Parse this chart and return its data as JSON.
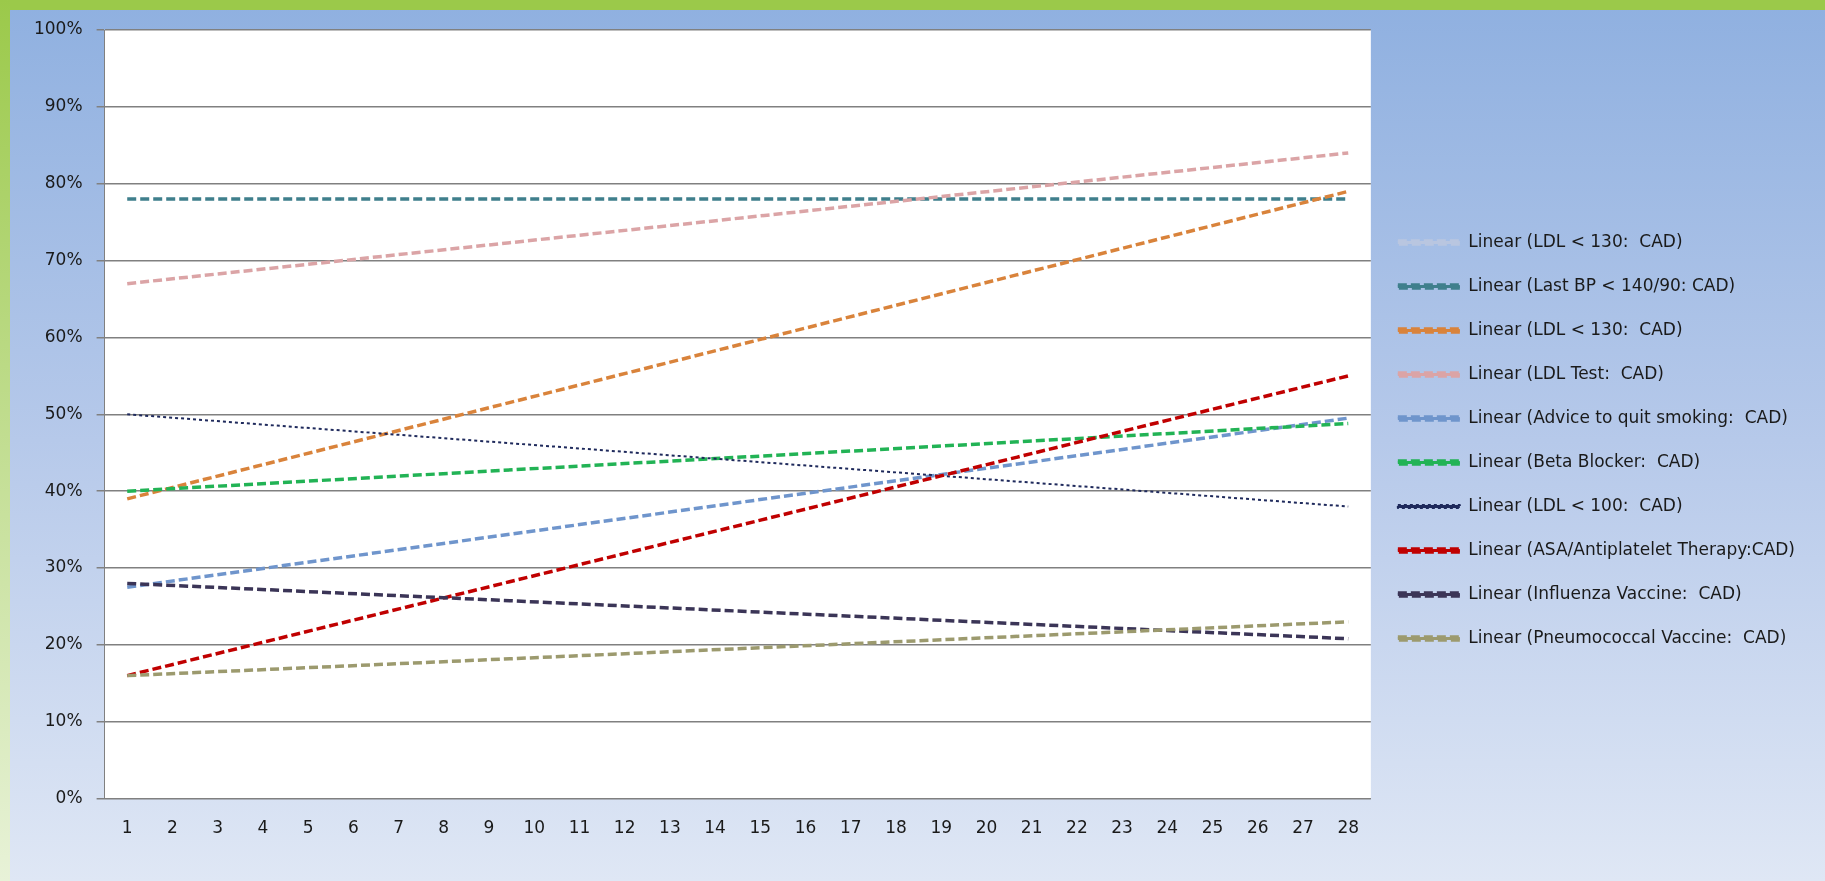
{
  "chart_data": {
    "type": "line",
    "x": [
      1,
      28
    ],
    "xlim": [
      0.5,
      28.5
    ],
    "xticks": [
      1,
      2,
      3,
      4,
      5,
      6,
      7,
      8,
      9,
      10,
      11,
      12,
      13,
      14,
      15,
      16,
      17,
      18,
      19,
      20,
      21,
      22,
      23,
      24,
      25,
      26,
      27,
      28
    ],
    "ylim": [
      0,
      100
    ],
    "yticks": [
      {
        "value": 0,
        "label": "0%"
      },
      {
        "value": 10,
        "label": "10%"
      },
      {
        "value": 20,
        "label": "20%"
      },
      {
        "value": 30,
        "label": "30%"
      },
      {
        "value": 40,
        "label": "40%"
      },
      {
        "value": 50,
        "label": "50%"
      },
      {
        "value": 60,
        "label": "60%"
      },
      {
        "value": 70,
        "label": "70%"
      },
      {
        "value": 80,
        "label": "80%"
      },
      {
        "value": 90,
        "label": "90%"
      },
      {
        "value": 100,
        "label": "100%"
      }
    ],
    "grid": "y",
    "legend": "right",
    "marker": "none",
    "series": [
      {
        "name": "Linear (LDL < 130:  CAD)",
        "color": "#b9c6e0",
        "line_style": "dashed",
        "values": [
          null,
          null
        ]
      },
      {
        "name": "Linear (Last BP < 140/90: CAD)",
        "color": "#3f7f8c",
        "line_style": "dashed",
        "values": [
          78,
          78
        ]
      },
      {
        "name": "Linear (LDL < 130:  CAD)",
        "color": "#d9833b",
        "line_style": "dashed",
        "values": [
          39,
          79
        ]
      },
      {
        "name": "Linear (LDL Test:  CAD)",
        "color": "#dba4a6",
        "line_style": "dashed",
        "values": [
          67,
          84
        ]
      },
      {
        "name": "Linear (Advice to quit smoking:  CAD)",
        "color": "#6f95cc",
        "line_style": "dashed",
        "values": [
          27.5,
          49.5
        ]
      },
      {
        "name": "Linear (Beta Blocker:  CAD)",
        "color": "#22b355",
        "line_style": "dashed",
        "values": [
          40,
          48.8
        ]
      },
      {
        "name": "Linear (LDL < 100:  CAD)",
        "color": "#1f2a5c",
        "line_style": "dotted",
        "values": [
          50,
          38
        ]
      },
      {
        "name": "Linear (ASA/Antiplatelet Therapy:CAD)",
        "color": "#c00000",
        "line_style": "dashed",
        "values": [
          16,
          55
        ]
      },
      {
        "name": "Linear (Influenza Vaccine:  CAD)",
        "color": "#3b3557",
        "line_style": "dashed",
        "values": [
          28,
          20.8
        ]
      },
      {
        "name": "Linear (Pneumococcal Vaccine:  CAD)",
        "color": "#9c9a6e",
        "line_style": "dashed",
        "values": [
          16,
          23
        ]
      }
    ]
  }
}
